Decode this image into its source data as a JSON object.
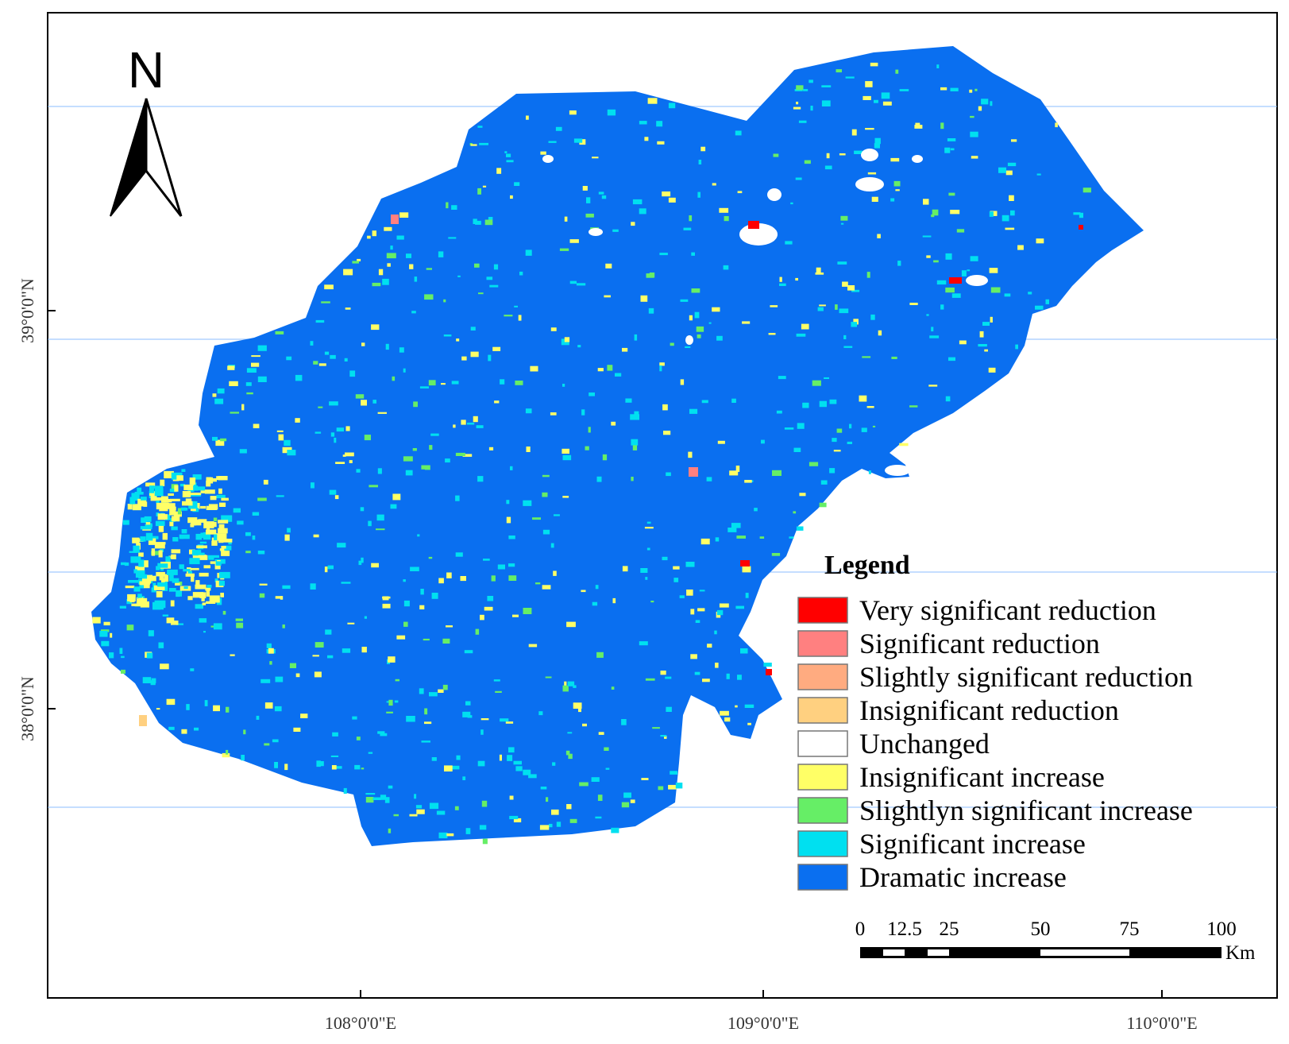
{
  "map": {
    "north_arrow": {
      "letter": "N"
    },
    "lat_labels": [
      "39°0'0\"N",
      "38°0'0\"N"
    ],
    "lon_labels": [
      "108°0'0\"E",
      "109°0'0\"E",
      "110°0'0\"E"
    ],
    "region_color": "#0a6ff0",
    "legend": {
      "title": "Legend",
      "items": [
        {
          "label": "Very significant reduction",
          "color": "#ff0000"
        },
        {
          "label": "Significant reduction",
          "color": "#ff8080"
        },
        {
          "label": "Slightly significant reduction",
          "color": "#ffab80"
        },
        {
          "label": "Insignificant reduction",
          "color": "#ffd080"
        },
        {
          "label": "Unchanged",
          "color": "#ffffff"
        },
        {
          "label": "Insignificant increase",
          "color": "#ffff66"
        },
        {
          "label": "Slightlyn significant increase",
          "color": "#66ee66"
        },
        {
          "label": "Significant increase",
          "color": "#00e0f0"
        },
        {
          "label": "Dramatic increase",
          "color": "#0a6ff0"
        }
      ]
    },
    "scale_bar": {
      "ticks": [
        "0",
        "12.5",
        "25",
        "50",
        "75",
        "100"
      ],
      "unit": "Km"
    }
  }
}
